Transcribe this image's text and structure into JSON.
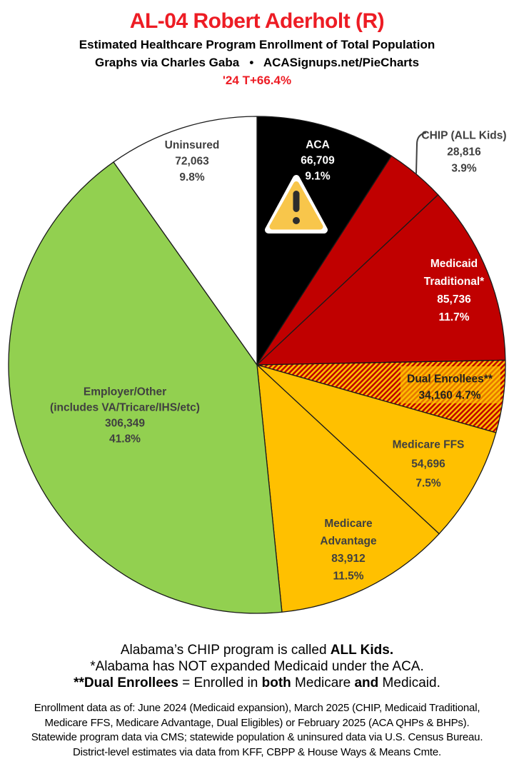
{
  "header": {
    "title": "AL-04 Robert Aderholt (R)",
    "subtitle": "Estimated Healthcare Program Enrollment of Total Population",
    "attribution": "Graphs via Charles Gaba   •   ACASignups.net/PieCharts",
    "swing": "'24 T+66.4%"
  },
  "chart_data": {
    "type": "pie",
    "title": "AL-04 Robert Aderholt (R)",
    "subtitle": "Estimated Healthcare Program Enrollment of Total Population",
    "units": "people",
    "start_angle_deg": 0,
    "direction": "clockwise",
    "total_pct": 100.0,
    "slices": [
      {
        "label": "ACA",
        "value": 66709,
        "pct": 9.1,
        "color": "#000000",
        "text_color": "#FFFFFF",
        "lines": [
          "ACA",
          "66,709",
          "9.1%"
        ],
        "icon": "warning-triangle"
      },
      {
        "label": "CHIP (ALL Kids)",
        "value": 28816,
        "pct": 3.9,
        "color": "#C00000",
        "text_color": "#404040",
        "lines": [
          "CHIP (ALL Kids)",
          "28,816",
          "3.9%"
        ],
        "label_position": "outside-with-leader"
      },
      {
        "label": "Medicaid Traditional*",
        "value": 85736,
        "pct": 11.7,
        "color": "#C00000",
        "text_color": "#FFFFFF",
        "lines": [
          "Medicaid",
          "Traditional*",
          "85,736",
          "11.7%"
        ]
      },
      {
        "label": "Dual Enrollees**",
        "value": 34160,
        "pct": 4.7,
        "color": "#C00000",
        "pattern": {
          "type": "diagonal-hatch",
          "colors": [
            "#C00000",
            "#FFC000"
          ]
        },
        "text_color": "#1f1f1f",
        "lines": [
          "Dual Enrollees**",
          "34,160 4.7%"
        ],
        "label_bg": "#FFC000"
      },
      {
        "label": "Medicare FFS",
        "value": 54696,
        "pct": 7.5,
        "color": "#FFC000",
        "text_color": "#404040",
        "lines": [
          "Medicare FFS",
          "54,696",
          "7.5%"
        ]
      },
      {
        "label": "Medicare Advantage",
        "value": 83912,
        "pct": 11.5,
        "color": "#FFC000",
        "text_color": "#404040",
        "lines": [
          "Medicare",
          "Advantage",
          "83,912",
          "11.5%"
        ]
      },
      {
        "label": "Employer/Other (includes VA/Tricare/IHS/etc)",
        "value": 306349,
        "pct": 41.8,
        "color": "#92D050",
        "text_color": "#404040",
        "lines": [
          "Employer/Other",
          "(includes VA/Tricare/IHS/etc)",
          "306,349",
          "41.8%"
        ]
      },
      {
        "label": "Uninsured",
        "value": 72063,
        "pct": 9.8,
        "color": "#FFFFFF",
        "text_color": "#404040",
        "lines": [
          "Uninsured",
          "72,063",
          "9.8%"
        ]
      }
    ],
    "accent_color": "#ED1C24",
    "slice_stroke_color": "#1a1a1a"
  },
  "notes": [
    [
      {
        "t": "Alabama’s CHIP program is called "
      },
      {
        "t": "ALL Kids.",
        "b": 1
      }
    ],
    [
      {
        "t": "*Alabama has NOT expanded Medicaid under the ACA."
      }
    ],
    [
      {
        "t": "**Dual Enrollees",
        "b": 1
      },
      {
        "t": " = Enrolled in "
      },
      {
        "t": "both",
        "b": 1
      },
      {
        "t": " Medicare "
      },
      {
        "t": "and",
        "b": 1
      },
      {
        "t": " Medicaid."
      }
    ]
  ],
  "footer_lines": [
    "Enrollment data as of: June 2024 (Medicaid expansion), March 2025 (CHIP, Medicaid Traditional,",
    "Medicare FFS, Medicare Advantage, Dual Eligibles) or February 2025 (ACA QHPs & BHPs).",
    "Statewide program data via CMS; statewide population & uninsured data via U.S. Census Bureau.",
    "District-level estimates via data from KFF, CBPP & House Ways & Means Cmte."
  ]
}
